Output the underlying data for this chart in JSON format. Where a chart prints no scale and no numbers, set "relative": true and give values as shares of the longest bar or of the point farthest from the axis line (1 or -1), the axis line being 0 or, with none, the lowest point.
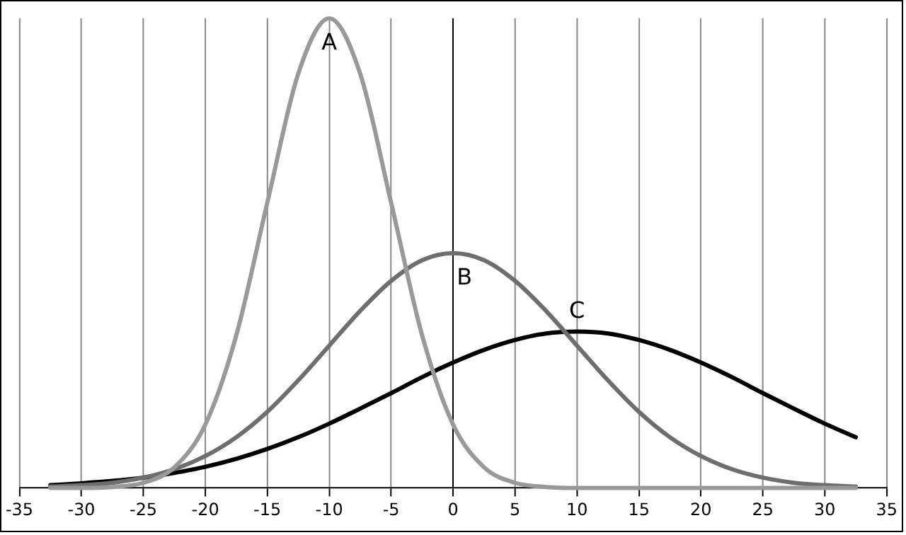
{
  "chart_data": {
    "type": "line",
    "relative": true,
    "x": [
      -32.5,
      -30,
      -27.5,
      -25,
      -22.5,
      -20,
      -17.5,
      -15,
      -12.5,
      -10,
      -7.5,
      -5,
      -2.5,
      0,
      2.5,
      5,
      7.5,
      10,
      12.5,
      15,
      17.5,
      20,
      22.5,
      25,
      27.5,
      30,
      32.5
    ],
    "series": [
      {
        "name": "A",
        "color": "#999999",
        "values": [
          0,
          0,
          0.002,
          0.011,
          0.044,
          0.135,
          0.325,
          0.607,
          0.882,
          1,
          0.882,
          0.607,
          0.325,
          0.135,
          0.044,
          0.011,
          0.002,
          0,
          0,
          0,
          0,
          0,
          0,
          0,
          0,
          0,
          0
        ]
      },
      {
        "name": "B",
        "color": "#6e6e6e",
        "values": [
          0.003,
          0.006,
          0.011,
          0.022,
          0.04,
          0.068,
          0.108,
          0.162,
          0.229,
          0.303,
          0.377,
          0.441,
          0.485,
          0.5,
          0.485,
          0.441,
          0.377,
          0.303,
          0.229,
          0.162,
          0.108,
          0.068,
          0.04,
          0.022,
          0.011,
          0.006,
          0.003
        ]
      },
      {
        "name": "C",
        "color": "#000000",
        "values": [
          0.006,
          0.01,
          0.015,
          0.022,
          0.032,
          0.045,
          0.062,
          0.083,
          0.108,
          0.137,
          0.169,
          0.202,
          0.236,
          0.267,
          0.294,
          0.315,
          0.329,
          0.333,
          0.329,
          0.315,
          0.294,
          0.267,
          0.236,
          0.202,
          0.169,
          0.137,
          0.108
        ]
      }
    ],
    "xlim": [
      -35,
      35
    ],
    "xticks": [
      -35,
      -30,
      -25,
      -20,
      -15,
      -10,
      -5,
      0,
      5,
      10,
      15,
      20,
      25,
      30,
      35
    ],
    "grid": "x",
    "legend": false,
    "marker": "none",
    "line_style": "solid"
  }
}
